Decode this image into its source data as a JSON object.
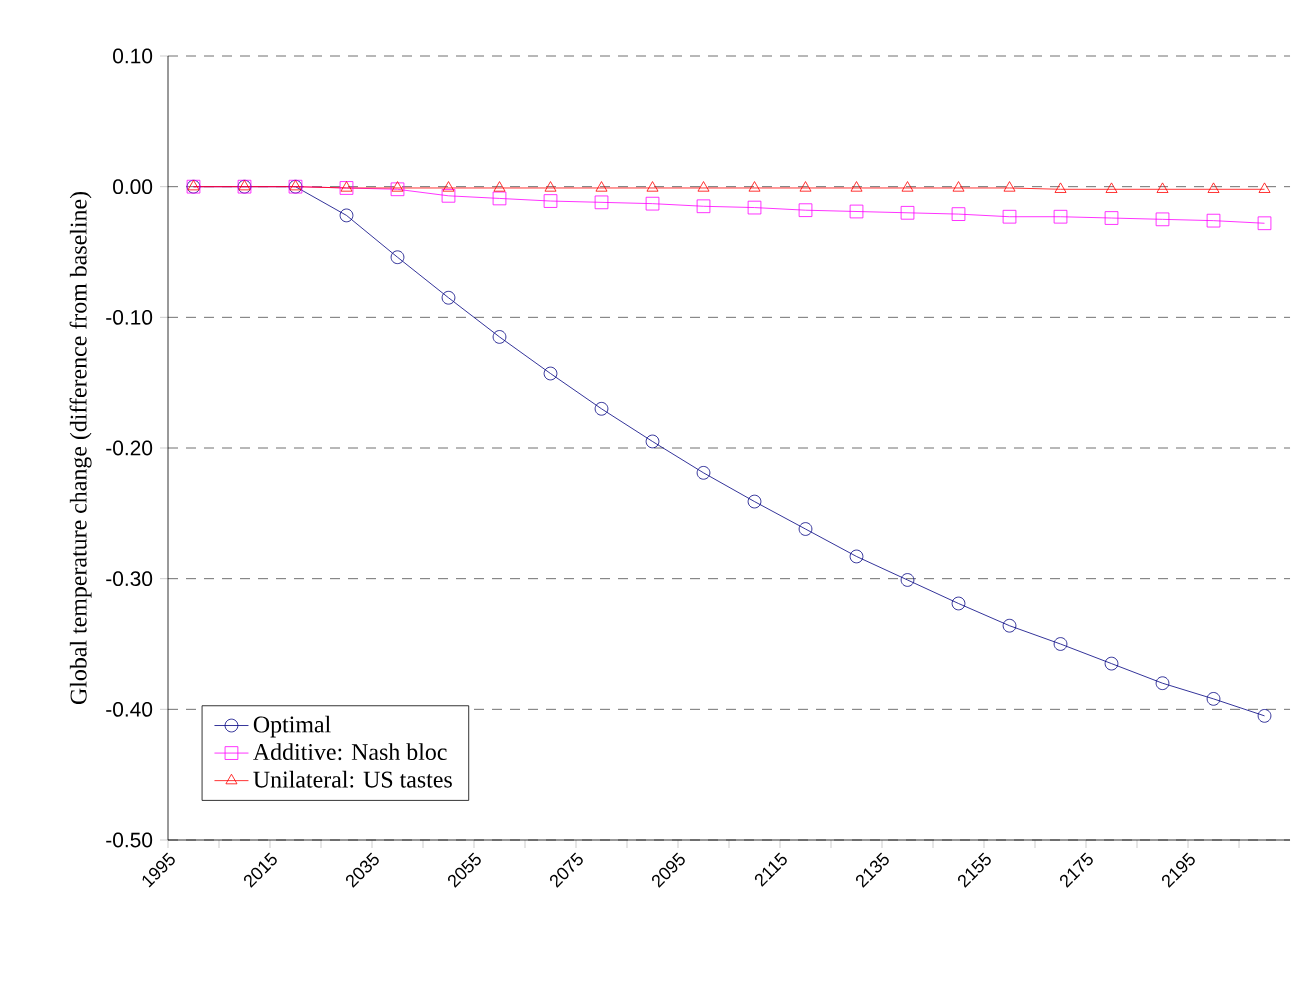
{
  "chart_data": {
    "type": "line",
    "ylabel": "Global temperature change (difference from baseline)",
    "x": [
      2000,
      2010,
      2020,
      2030,
      2040,
      2050,
      2060,
      2070,
      2080,
      2090,
      2100,
      2110,
      2120,
      2130,
      2140,
      2150,
      2160,
      2170,
      2180,
      2190,
      2200,
      2210
    ],
    "series": [
      {
        "name": "Optimal",
        "color": "#000080",
        "marker": "circle",
        "values": [
          0,
          0,
          0,
          -0.022,
          -0.054,
          -0.085,
          -0.115,
          -0.143,
          -0.17,
          -0.195,
          -0.219,
          -0.241,
          -0.262,
          -0.283,
          -0.301,
          -0.319,
          -0.336,
          -0.35,
          -0.365,
          -0.38,
          -0.392,
          -0.405
        ]
      },
      {
        "name": "Additive: Nash bloc",
        "color": "#ff00ff",
        "marker": "square",
        "values": [
          0,
          0,
          0,
          -0.001,
          -0.002,
          -0.007,
          -0.009,
          -0.011,
          -0.012,
          -0.013,
          -0.015,
          -0.016,
          -0.018,
          -0.019,
          -0.02,
          -0.021,
          -0.023,
          -0.023,
          -0.024,
          -0.025,
          -0.026,
          -0.028
        ]
      },
      {
        "name": "Unilateral: US tastes",
        "color": "#ff0000",
        "marker": "triangle",
        "values": [
          0,
          0,
          0,
          -0.001,
          -0.001,
          -0.001,
          -0.001,
          -0.001,
          -0.001,
          -0.001,
          -0.001,
          -0.001,
          -0.001,
          -0.001,
          -0.001,
          -0.001,
          -0.001,
          -0.002,
          -0.002,
          -0.002,
          -0.002,
          -0.002
        ]
      }
    ],
    "xlim": [
      1995,
      2215
    ],
    "xticks": [
      1995,
      {
        "value": 2005,
        "label": null
      },
      2015,
      {
        "value": 2025,
        "label": null
      },
      2035,
      {
        "value": 2045,
        "label": null
      },
      2055,
      {
        "value": 2065,
        "label": null
      },
      2075,
      {
        "value": 2085,
        "label": null
      },
      2095,
      {
        "value": 2105,
        "label": null
      },
      2115,
      {
        "value": 2125,
        "label": null
      },
      2135,
      {
        "value": 2145,
        "label": null
      },
      2155,
      {
        "value": 2165,
        "label": null
      },
      2175,
      {
        "value": 2185,
        "label": null
      },
      2195,
      {
        "value": 2205,
        "label": null
      }
    ],
    "ylim": [
      -0.5,
      0.1
    ],
    "yticks": [
      {
        "value": -0.5,
        "label": "-0.50"
      },
      {
        "value": -0.4,
        "label": "-0.40"
      },
      {
        "value": -0.3,
        "label": "-0.30"
      },
      {
        "value": -0.2,
        "label": "-0.20"
      },
      {
        "value": -0.1,
        "label": "-0.10"
      },
      {
        "value": 0,
        "label": "0.00"
      },
      {
        "value": 0.1,
        "label": "0.10"
      }
    ],
    "grid": "y",
    "legend": "bottom left",
    "line_style": "solid"
  }
}
